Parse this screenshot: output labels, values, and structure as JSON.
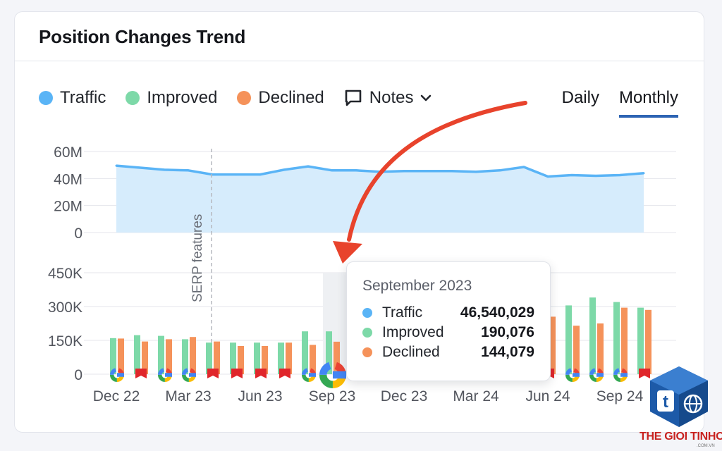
{
  "card": {
    "title": "Position Changes Trend"
  },
  "legend": {
    "items": [
      {
        "label": "Traffic",
        "color": "#5ab4f6"
      },
      {
        "label": "Improved",
        "color": "#7dd9a8"
      },
      {
        "label": "Declined",
        "color": "#f5925a"
      }
    ],
    "notes_label": "Notes"
  },
  "period_tabs": [
    {
      "label": "Daily",
      "active": false
    },
    {
      "label": "Monthly",
      "active": true
    }
  ],
  "chart_data": [
    {
      "type": "area",
      "series": [
        {
          "name": "Traffic",
          "values": [
            49.5,
            48,
            46.5,
            46,
            43,
            43,
            43,
            46.5,
            49,
            46,
            46,
            45,
            45.5,
            45.5,
            45.5,
            45,
            46,
            48.5,
            41.5,
            42.5,
            42,
            42.5,
            44
          ]
        }
      ],
      "y_ticks": [
        "60M",
        "40M",
        "20M",
        "0"
      ],
      "ylim": [
        0,
        60
      ],
      "annotation": "SERP features"
    },
    {
      "type": "bar",
      "categories_ticks": [
        "Dec 22",
        "Mar 23",
        "Jun 23",
        "Sep 23",
        "Dec 23",
        "Mar 24",
        "Jun 24",
        "Sep 24"
      ],
      "series": [
        {
          "name": "Improved",
          "values": [
            160,
            173,
            170,
            155,
            140,
            140,
            140,
            140,
            190,
            190,
            null,
            null,
            null,
            null,
            null,
            null,
            null,
            null,
            200,
            305,
            340,
            320,
            295
          ]
        },
        {
          "name": "Declined",
          "values": [
            158,
            145,
            155,
            165,
            145,
            125,
            125,
            140,
            130,
            144,
            null,
            null,
            null,
            null,
            null,
            null,
            null,
            null,
            255,
            215,
            225,
            295,
            285
          ]
        }
      ],
      "y_ticks": [
        "450K",
        "300K",
        "150K",
        "0"
      ],
      "ylim": [
        0,
        450
      ]
    }
  ],
  "markers": [
    "google",
    "note",
    "google",
    "google",
    "note",
    "note",
    "note",
    "note",
    "google",
    "google-large",
    null,
    null,
    null,
    null,
    null,
    null,
    null,
    null,
    "note",
    "google",
    "google",
    "google",
    "note"
  ],
  "tooltip": {
    "title": "September 2023",
    "rows": [
      {
        "label": "Traffic",
        "value": "46,540,029",
        "color": "#5ab4f6"
      },
      {
        "label": "Improved",
        "value": "190,076",
        "color": "#7dd9a8"
      },
      {
        "label": "Declined",
        "value": "144,079",
        "color": "#f5925a"
      }
    ]
  },
  "watermark": {
    "text": "THE GIOI TINHOC",
    "sub": ".COM.VN"
  },
  "colors": {
    "accent_tab": "#2d64b3",
    "arrow": "#e8432c"
  }
}
